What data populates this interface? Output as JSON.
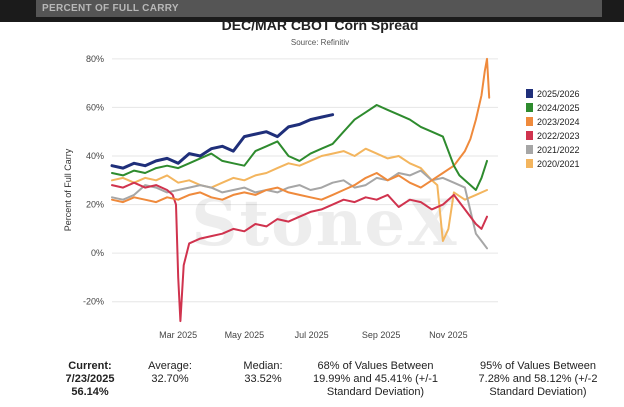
{
  "header": {
    "section_label": "PERCENT OF FULL CARRY"
  },
  "chart_data": {
    "type": "line",
    "title": "DEC/MAR CBOT Corn Spread",
    "subtitle": "Source: Refinitiv",
    "ylabel": "Percent of Full Carry",
    "xlabel": "",
    "ylim": [
      -30,
      82
    ],
    "yticks": [
      "80%",
      "60%",
      "40%",
      "20%",
      "0%",
      "-20%"
    ],
    "ytick_values": [
      80,
      60,
      40,
      20,
      0,
      -20
    ],
    "xtick_labels": [
      "Mar 2025",
      "May 2025",
      "Jul 2025",
      "Sep 2025",
      "Nov 2025"
    ],
    "xtick_values": [
      60,
      120,
      181,
      244,
      305
    ],
    "x_domain": [
      0,
      350
    ],
    "watermark": "StoneX",
    "legend_position": "right",
    "series": [
      {
        "name": "2025/2026",
        "color": "#1f2f7a",
        "width": 3,
        "x": [
          0,
          10,
          20,
          30,
          40,
          50,
          60,
          70,
          80,
          90,
          100,
          110,
          120,
          130,
          140,
          150,
          160,
          170,
          180,
          190,
          200
        ],
        "y": [
          36,
          35,
          37,
          36,
          38,
          39,
          37,
          41,
          40,
          43,
          44,
          42,
          48,
          49,
          50,
          48,
          52,
          53,
          55,
          56,
          57
        ]
      },
      {
        "name": "2024/2025",
        "color": "#2e8b2e",
        "width": 2,
        "x": [
          0,
          10,
          20,
          30,
          40,
          50,
          60,
          70,
          80,
          90,
          100,
          110,
          120,
          130,
          140,
          150,
          160,
          170,
          180,
          190,
          200,
          210,
          220,
          230,
          240,
          250,
          260,
          270,
          280,
          290,
          300,
          310,
          315,
          320,
          325,
          330,
          335,
          340
        ],
        "y": [
          33,
          32,
          34,
          33,
          35,
          36,
          35,
          37,
          39,
          41,
          38,
          37,
          36,
          42,
          44,
          46,
          40,
          38,
          41,
          43,
          45,
          50,
          55,
          58,
          61,
          59,
          57,
          55,
          52,
          50,
          48,
          36,
          32,
          30,
          28,
          26,
          31,
          38
        ]
      },
      {
        "name": "2023/2024",
        "color": "#ef8a3c",
        "width": 2,
        "x": [
          0,
          10,
          20,
          30,
          40,
          50,
          60,
          70,
          80,
          90,
          100,
          110,
          120,
          130,
          140,
          150,
          160,
          170,
          180,
          190,
          200,
          210,
          220,
          230,
          240,
          250,
          260,
          270,
          280,
          290,
          300,
          310,
          320,
          325,
          330,
          335,
          338,
          340,
          342
        ],
        "y": [
          22,
          21,
          23,
          22,
          21,
          23,
          22,
          24,
          25,
          23,
          22,
          24,
          25,
          24,
          26,
          27,
          25,
          24,
          23,
          22,
          24,
          26,
          28,
          31,
          33,
          30,
          32,
          29,
          27,
          30,
          33,
          36,
          42,
          47,
          55,
          65,
          75,
          80,
          64
        ]
      },
      {
        "name": "2022/2023",
        "color": "#d0334e",
        "width": 2,
        "x": [
          0,
          10,
          20,
          30,
          40,
          50,
          55,
          58,
          60,
          62,
          65,
          70,
          80,
          90,
          100,
          110,
          120,
          130,
          140,
          150,
          160,
          170,
          180,
          190,
          200,
          210,
          220,
          230,
          240,
          250,
          260,
          270,
          280,
          290,
          300,
          310,
          320,
          330,
          335,
          340
        ],
        "y": [
          28,
          27,
          29,
          27,
          28,
          26,
          24,
          20,
          -10,
          -28,
          -5,
          4,
          6,
          7,
          8,
          10,
          9,
          12,
          11,
          14,
          13,
          15,
          17,
          18,
          20,
          22,
          21,
          23,
          22,
          24,
          19,
          22,
          21,
          18,
          20,
          24,
          18,
          12,
          10,
          15
        ]
      },
      {
        "name": "2021/2022",
        "color": "#a6a6a6",
        "width": 2,
        "x": [
          0,
          10,
          20,
          30,
          40,
          50,
          60,
          70,
          80,
          90,
          100,
          110,
          120,
          130,
          140,
          150,
          160,
          170,
          180,
          190,
          200,
          210,
          220,
          230,
          240,
          250,
          260,
          270,
          280,
          290,
          300,
          310,
          320,
          330,
          335,
          340
        ],
        "y": [
          23,
          22,
          24,
          28,
          27,
          25,
          26,
          27,
          28,
          27,
          25,
          26,
          27,
          25,
          26,
          25,
          27,
          28,
          26,
          27,
          29,
          30,
          27,
          28,
          31,
          30,
          33,
          32,
          34,
          30,
          31,
          29,
          27,
          8,
          5,
          2
        ]
      },
      {
        "name": "2020/2021",
        "color": "#f3b55e",
        "width": 2,
        "x": [
          0,
          10,
          20,
          30,
          40,
          50,
          60,
          70,
          80,
          90,
          100,
          110,
          120,
          130,
          140,
          150,
          160,
          170,
          180,
          190,
          200,
          210,
          220,
          230,
          240,
          250,
          260,
          270,
          280,
          290,
          295,
          300,
          305,
          310,
          320,
          330,
          340
        ],
        "y": [
          30,
          31,
          29,
          31,
          30,
          32,
          29,
          30,
          28,
          27,
          29,
          31,
          30,
          32,
          33,
          35,
          37,
          36,
          38,
          40,
          41,
          42,
          40,
          43,
          41,
          39,
          40,
          37,
          35,
          30,
          28,
          5,
          10,
          25,
          22,
          24,
          26
        ]
      }
    ]
  },
  "stats": {
    "current_label": "Current:",
    "current_date": "7/23/2025",
    "current_value": "56.14%",
    "average_label": "Average:",
    "average_value": "32.70%",
    "median_label": "Median:",
    "median_value": "33.52%",
    "range68_line1": "68% of Values Between",
    "range68_line2": "19.99% and 45.41% (+/-1",
    "range68_line3": "Standard Deviation)",
    "range95_line1": "95% of Values Between",
    "range95_line2": "7.28% and 58.12% (+/-2",
    "range95_line3": "Standard Deviation)"
  }
}
